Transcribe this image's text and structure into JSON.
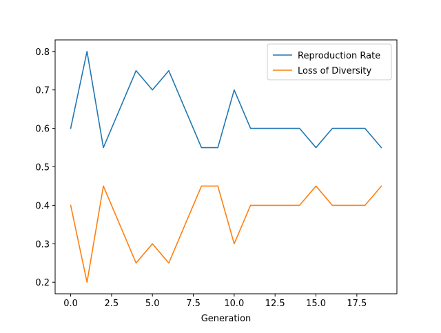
{
  "chart_data": {
    "type": "line",
    "title": "",
    "xlabel": "Generation",
    "ylabel": "",
    "xlim": [
      -0.95,
      19.95
    ],
    "ylim": [
      0.17,
      0.83
    ],
    "x_ticks": [
      0.0,
      2.5,
      5.0,
      7.5,
      10.0,
      12.5,
      15.0,
      17.5
    ],
    "x_tick_labels": [
      "0.0",
      "2.5",
      "5.0",
      "7.5",
      "10.0",
      "12.5",
      "15.0",
      "17.5"
    ],
    "y_ticks": [
      0.2,
      0.3,
      0.4,
      0.5,
      0.6,
      0.7,
      0.8
    ],
    "y_tick_labels": [
      "0.2",
      "0.3",
      "0.4",
      "0.5",
      "0.6",
      "0.7",
      "0.8"
    ],
    "grid": false,
    "legend_position": "top-right",
    "x": [
      0,
      1,
      2,
      3,
      4,
      5,
      6,
      7,
      8,
      9,
      10,
      11,
      12,
      13,
      14,
      15,
      16,
      17,
      18,
      19
    ],
    "series": [
      {
        "name": "Reproduction Rate",
        "color": "#1f77b4",
        "values": [
          0.6,
          0.8,
          0.55,
          0.65,
          0.75,
          0.7,
          0.75,
          0.65,
          0.55,
          0.55,
          0.7,
          0.6,
          0.6,
          0.6,
          0.6,
          0.55,
          0.6,
          0.6,
          0.6,
          0.55
        ]
      },
      {
        "name": "Loss of Diversity",
        "color": "#ff7f0e",
        "values": [
          0.4,
          0.2,
          0.45,
          0.35,
          0.25,
          0.3,
          0.25,
          0.35,
          0.45,
          0.45,
          0.3,
          0.4,
          0.4,
          0.4,
          0.4,
          0.45,
          0.4,
          0.4,
          0.4,
          0.45
        ]
      }
    ]
  }
}
